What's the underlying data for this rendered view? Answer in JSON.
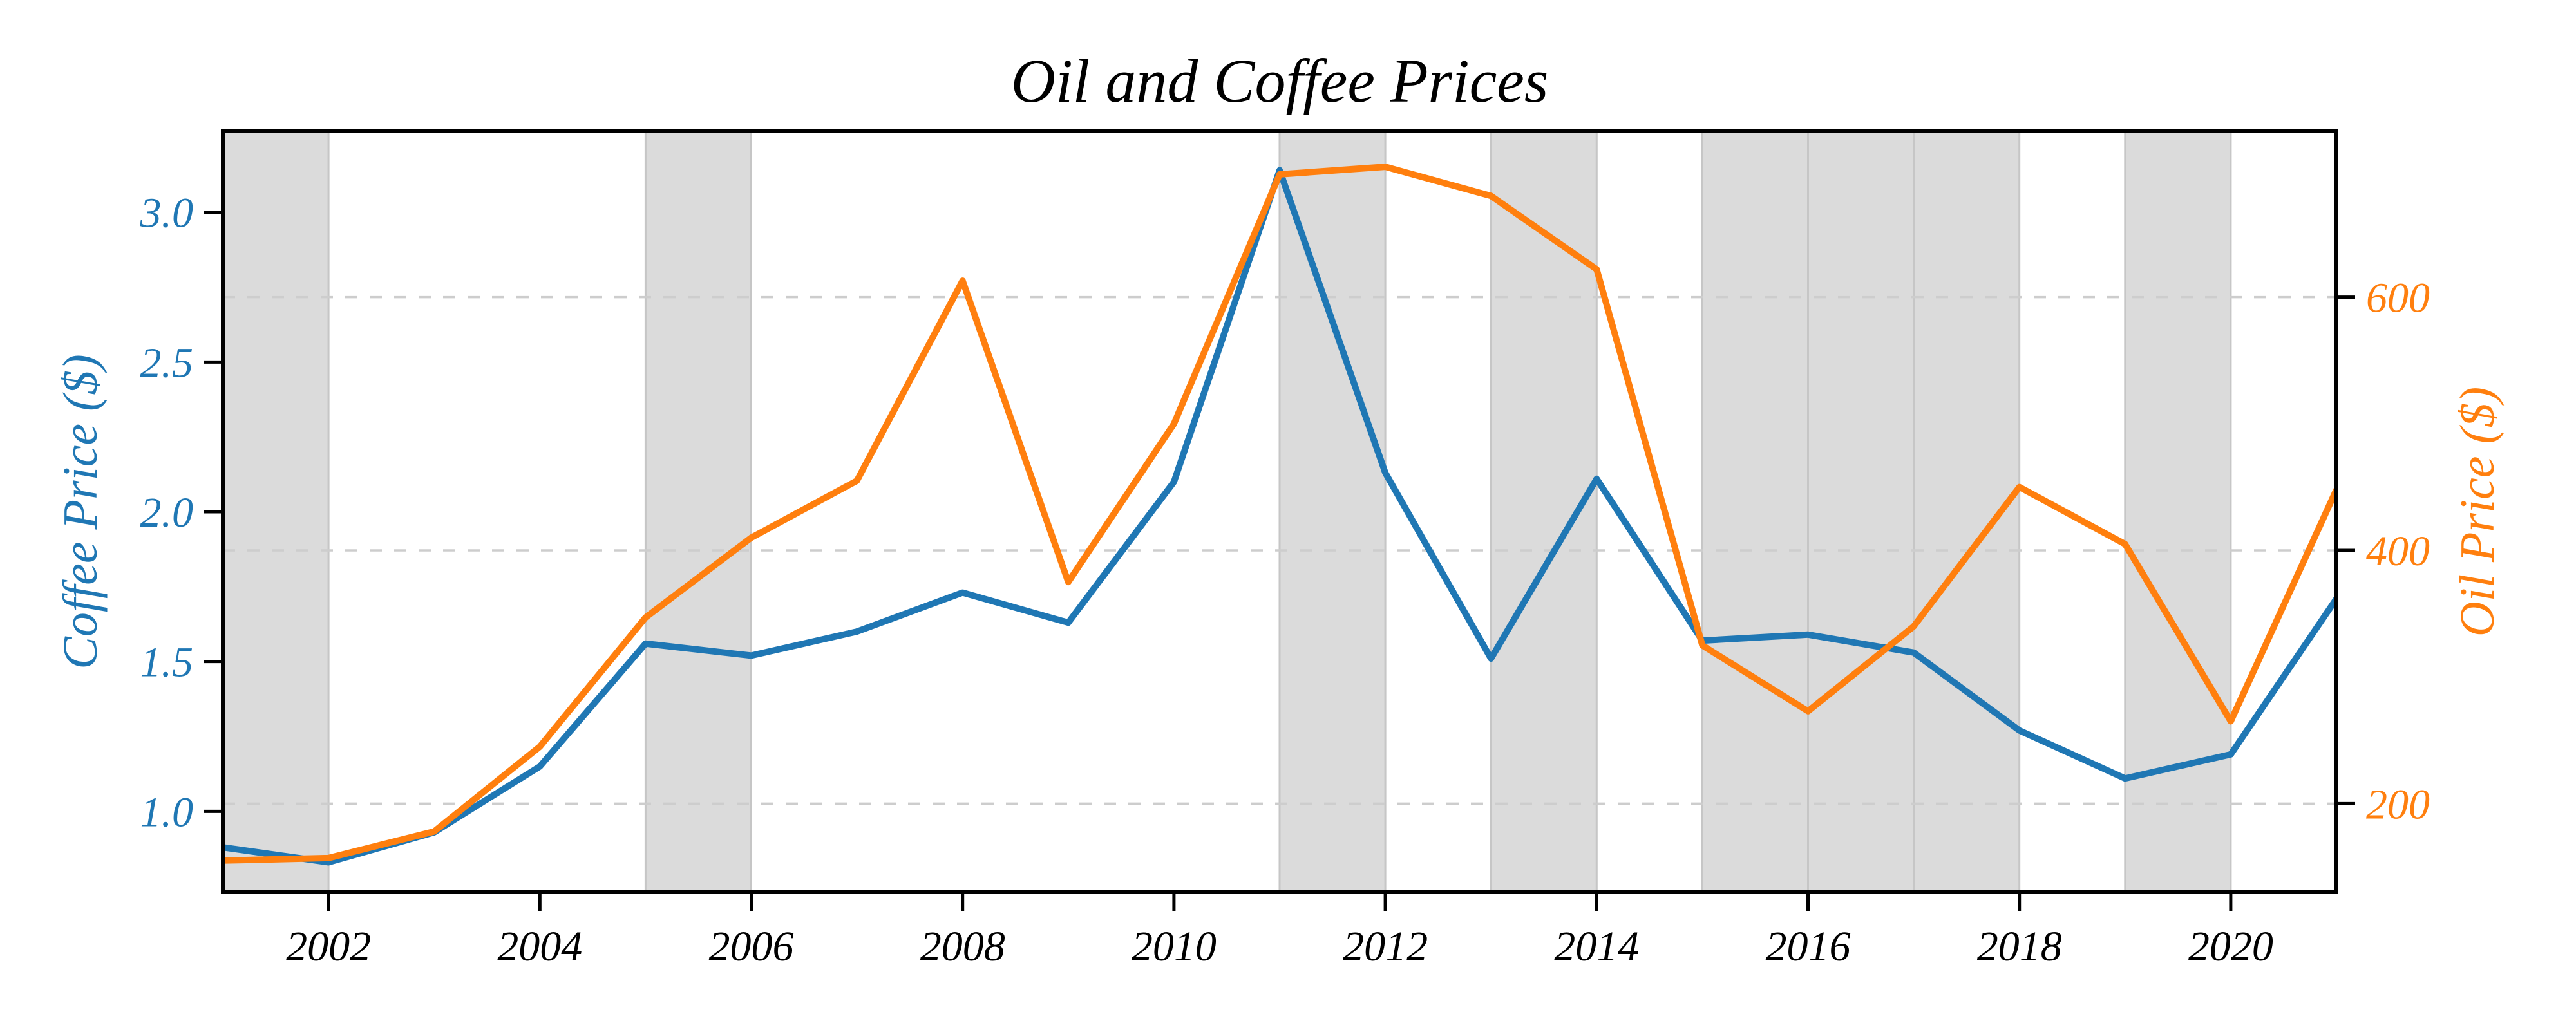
{
  "title": "Oil and Coffee Prices",
  "chart_data": {
    "type": "line",
    "title": "Oil and Coffee Prices",
    "x": [
      2001,
      2002,
      2003,
      2004,
      2005,
      2006,
      2007,
      2008,
      2009,
      2010,
      2011,
      2012,
      2013,
      2014,
      2015,
      2016,
      2017,
      2018,
      2019,
      2020,
      2021
    ],
    "series": [
      {
        "name": "Coffee Price ($)",
        "axis": "left",
        "color": "#1f77b4",
        "values": [
          0.88,
          0.83,
          0.93,
          1.15,
          1.56,
          1.52,
          1.6,
          1.73,
          1.63,
          2.1,
          3.14,
          2.13,
          1.51,
          2.11,
          1.57,
          1.59,
          1.53,
          1.27,
          1.11,
          1.19,
          1.71
        ]
      },
      {
        "name": "Oil Price ($)",
        "axis": "right",
        "color": "#ff7f0e",
        "values": [
          155,
          157,
          178,
          245,
          347,
          410,
          455,
          613,
          375,
          500,
          697,
          703,
          680,
          622,
          325,
          273,
          340,
          450,
          405,
          265,
          448
        ]
      }
    ],
    "x_axis": {
      "range": [
        2001,
        2021
      ],
      "ticks": [
        "2002",
        "2004",
        "2006",
        "2008",
        "2010",
        "2012",
        "2014",
        "2016",
        "2018",
        "2020"
      ],
      "tick_color": "#000000"
    },
    "left_axis": {
      "label": "Coffee Price ($)",
      "color": "#1f77b4",
      "range": [
        0.73,
        3.27
      ],
      "ticks": [
        "1.0",
        "1.5",
        "2.0",
        "2.5",
        "3.0"
      ]
    },
    "right_axis": {
      "label": "Oil Price ($)",
      "color": "#ff7f0e",
      "range": [
        130,
        731
      ],
      "ticks": [
        "200",
        "400",
        "600"
      ]
    },
    "grid": {
      "style": "dashed",
      "color": "#cdcdcd",
      "on_axis": "right"
    },
    "shaded_spans": {
      "color": "#dbdbdb",
      "edge_color": "#c6c6c6",
      "spans": [
        [
          2001,
          2002
        ],
        [
          2005,
          2006
        ],
        [
          2011,
          2012
        ],
        [
          2013,
          2014
        ],
        [
          2015,
          2016
        ],
        [
          2016,
          2017
        ],
        [
          2017,
          2018
        ],
        [
          2019,
          2020
        ]
      ]
    },
    "legend": "none"
  }
}
